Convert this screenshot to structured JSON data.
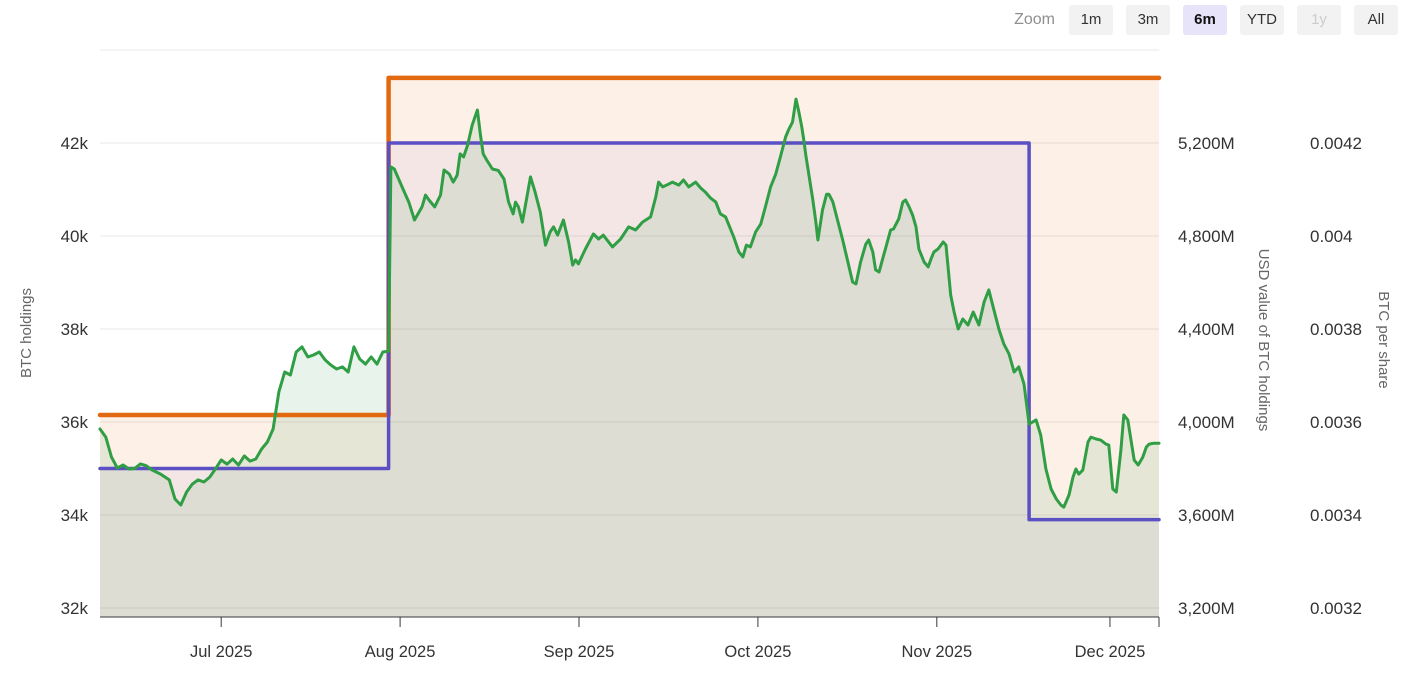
{
  "toolbar": {
    "zoom_label": "Zoom",
    "buttons": [
      {
        "label": "1m",
        "state": "normal"
      },
      {
        "label": "3m",
        "state": "normal"
      },
      {
        "label": "6m",
        "state": "active"
      },
      {
        "label": "YTD",
        "state": "normal"
      },
      {
        "label": "1y",
        "state": "disabled"
      },
      {
        "label": "All",
        "state": "normal"
      }
    ]
  },
  "colors": {
    "btc_holdings": "#E2690F",
    "usd_value": "#2F9E45",
    "btc_per_share": "#5B4FC4",
    "active_button_bg": "#E7E3F8",
    "button_bg": "#F2F2F2",
    "grid": "#E8E8E8",
    "axis_line": "#39383d",
    "axis_text": "#333333",
    "axis_title": "#666666",
    "background": "#FFFFFF"
  },
  "chart_data": {
    "type": "line",
    "title": "",
    "x_axis": {
      "start_date": "2025-06-10",
      "end_date": "2025-12-10",
      "range_days": [
        0,
        183.5
      ],
      "tick_days": [
        21,
        52,
        83,
        114,
        145,
        175
      ],
      "tick_labels": [
        "Jul 2025",
        "Aug 2025",
        "Sep 2025",
        "Oct 2025",
        "Nov 2025",
        "Dec 2025"
      ]
    },
    "axes": {
      "left": {
        "title": "BTC holdings",
        "tick_values": [
          44000,
          42000,
          40000,
          38000,
          36000,
          34000,
          32000
        ],
        "tick_labels": [
          "",
          "42k",
          "40k",
          "38k",
          "36k",
          "34k",
          "32k"
        ],
        "grid": true
      },
      "usd": {
        "title": "USD value of BTC holdings",
        "tick_values": [
          5200,
          4800,
          4400,
          4000,
          3600,
          3200
        ],
        "tick_labels": [
          "5,200M",
          "4,800M",
          "4,400M",
          "4,000M",
          "3,600M",
          "3,200M"
        ]
      },
      "share": {
        "title": "BTC per share",
        "tick_values": [
          0.0042,
          0.004,
          0.0038,
          0.0036,
          0.0034,
          0.0032
        ],
        "tick_labels": [
          "0.0042",
          "0.004",
          "0.0038",
          "0.0036",
          "0.0034",
          "0.0032"
        ]
      }
    },
    "series": [
      {
        "name": "BTC holdings",
        "slug": "btc-holdings",
        "axis": "left",
        "type": "step",
        "color": "#E2690F",
        "line_width": 4.5,
        "fill_opacity": 0.1,
        "points": [
          [
            0,
            36150
          ],
          [
            50,
            36150
          ],
          [
            50,
            43400
          ],
          [
            183.5,
            43400
          ]
        ]
      },
      {
        "name": "BTC per share",
        "slug": "btc-per-share",
        "axis": "share",
        "type": "step",
        "color": "#5B4FC4",
        "line_width": 3.5,
        "fill_opacity": 0.055,
        "points": [
          [
            0,
            0.0035
          ],
          [
            50,
            0.0035
          ],
          [
            50,
            0.0042
          ],
          [
            161,
            0.0042
          ],
          [
            161,
            0.00339
          ],
          [
            183.5,
            0.00339
          ]
        ]
      },
      {
        "name": "USD value of BTC holdings",
        "slug": "usd-value",
        "axis": "usd",
        "type": "line",
        "color": "#2F9E45",
        "line_width": 3,
        "fill_opacity": 0.11,
        "points": [
          [
            0,
            3970
          ],
          [
            1,
            3935
          ],
          [
            2,
            3849
          ],
          [
            3,
            3802
          ],
          [
            4,
            3815
          ],
          [
            5,
            3798
          ],
          [
            6,
            3800
          ],
          [
            7,
            3820
          ],
          [
            8,
            3812
          ],
          [
            9,
            3794
          ],
          [
            10.5,
            3776
          ],
          [
            12,
            3751
          ],
          [
            13,
            3669
          ],
          [
            14,
            3643
          ],
          [
            15,
            3699
          ],
          [
            16,
            3733
          ],
          [
            17,
            3751
          ],
          [
            18,
            3742
          ],
          [
            19,
            3763
          ],
          [
            20,
            3798
          ],
          [
            21,
            3837
          ],
          [
            22,
            3819
          ],
          [
            23,
            3841
          ],
          [
            24,
            3815
          ],
          [
            25,
            3854
          ],
          [
            26,
            3832
          ],
          [
            27,
            3841
          ],
          [
            28,
            3884
          ],
          [
            29,
            3914
          ],
          [
            30,
            3970
          ],
          [
            31,
            4130
          ],
          [
            32,
            4215
          ],
          [
            33,
            4202
          ],
          [
            34,
            4301
          ],
          [
            35,
            4323
          ],
          [
            36,
            4280
          ],
          [
            37,
            4288
          ],
          [
            38,
            4301
          ],
          [
            39,
            4267
          ],
          [
            40,
            4245
          ],
          [
            41,
            4228
          ],
          [
            42,
            4237
          ],
          [
            43,
            4215
          ],
          [
            44,
            4323
          ],
          [
            45,
            4271
          ],
          [
            46,
            4249
          ],
          [
            47,
            4280
          ],
          [
            48,
            4249
          ],
          [
            49,
            4301
          ],
          [
            50,
            4305
          ],
          [
            50.4,
            5097
          ],
          [
            51,
            5088
          ],
          [
            52.5,
            5002
          ],
          [
            53.5,
            4946
          ],
          [
            54.5,
            4869
          ],
          [
            55.8,
            4925
          ],
          [
            56.4,
            4976
          ],
          [
            57,
            4955
          ],
          [
            58,
            4925
          ],
          [
            59,
            4976
          ],
          [
            59.6,
            5084
          ],
          [
            60.5,
            5067
          ],
          [
            61.2,
            5032
          ],
          [
            61.9,
            5062
          ],
          [
            62.4,
            5153
          ],
          [
            63,
            5140
          ],
          [
            63.7,
            5191
          ],
          [
            64.5,
            5277
          ],
          [
            65.4,
            5342
          ],
          [
            65.9,
            5239
          ],
          [
            66.4,
            5153
          ],
          [
            67,
            5127
          ],
          [
            68,
            5088
          ],
          [
            69,
            5082
          ],
          [
            70,
            5045
          ],
          [
            70.8,
            4946
          ],
          [
            71.6,
            4895
          ],
          [
            72,
            4946
          ],
          [
            72.5,
            4925
          ],
          [
            73.2,
            4860
          ],
          [
            74.6,
            5054
          ],
          [
            75.4,
            4989
          ],
          [
            76.3,
            4903
          ],
          [
            77.2,
            4761
          ],
          [
            78,
            4817
          ],
          [
            78.6,
            4839
          ],
          [
            79.3,
            4804
          ],
          [
            80.3,
            4869
          ],
          [
            81.2,
            4774
          ],
          [
            81.9,
            4675
          ],
          [
            82.4,
            4697
          ],
          [
            82.9,
            4680
          ],
          [
            84.1,
            4744
          ],
          [
            85.5,
            4809
          ],
          [
            86.4,
            4787
          ],
          [
            87.2,
            4804
          ],
          [
            88.8,
            4753
          ],
          [
            90.2,
            4787
          ],
          [
            91.6,
            4839
          ],
          [
            92.8,
            4826
          ],
          [
            94,
            4860
          ],
          [
            95.4,
            4882
          ],
          [
            96.3,
            4968
          ],
          [
            96.8,
            5032
          ],
          [
            97.5,
            5011
          ],
          [
            98.5,
            5023
          ],
          [
            99.2,
            5032
          ],
          [
            100.3,
            5019
          ],
          [
            101.1,
            5041
          ],
          [
            102,
            5011
          ],
          [
            103.2,
            5032
          ],
          [
            104.1,
            5006
          ],
          [
            104.9,
            4989
          ],
          [
            105.8,
            4963
          ],
          [
            106.7,
            4946
          ],
          [
            107.5,
            4895
          ],
          [
            108.4,
            4882
          ],
          [
            109.8,
            4796
          ],
          [
            110.7,
            4731
          ],
          [
            111.4,
            4710
          ],
          [
            112,
            4761
          ],
          [
            112.7,
            4753
          ],
          [
            113.6,
            4817
          ],
          [
            114.5,
            4852
          ],
          [
            115.3,
            4925
          ],
          [
            116.2,
            5011
          ],
          [
            117.1,
            5067
          ],
          [
            117.9,
            5140
          ],
          [
            118.8,
            5226
          ],
          [
            119.3,
            5256
          ],
          [
            120,
            5290
          ],
          [
            120.6,
            5389
          ],
          [
            121.1,
            5333
          ],
          [
            121.6,
            5269
          ],
          [
            122,
            5204
          ],
          [
            122.3,
            5148
          ],
          [
            123.5,
            4959
          ],
          [
            124,
            4869
          ],
          [
            124.4,
            4783
          ],
          [
            125.2,
            4912
          ],
          [
            125.9,
            4980
          ],
          [
            126.3,
            4980
          ],
          [
            127,
            4946
          ],
          [
            127.8,
            4869
          ],
          [
            128.7,
            4783
          ],
          [
            129.6,
            4688
          ],
          [
            130.4,
            4602
          ],
          [
            131,
            4594
          ],
          [
            131.8,
            4688
          ],
          [
            132.7,
            4765
          ],
          [
            133.2,
            4783
          ],
          [
            133.9,
            4731
          ],
          [
            134.4,
            4654
          ],
          [
            135,
            4645
          ],
          [
            135.6,
            4701
          ],
          [
            136.2,
            4753
          ],
          [
            137,
            4826
          ],
          [
            137.5,
            4830
          ],
          [
            138.4,
            4873
          ],
          [
            139.1,
            4946
          ],
          [
            139.6,
            4955
          ],
          [
            140.2,
            4925
          ],
          [
            140.8,
            4890
          ],
          [
            141.4,
            4839
          ],
          [
            141.9,
            4744
          ],
          [
            142.8,
            4688
          ],
          [
            143.5,
            4667
          ],
          [
            144,
            4701
          ],
          [
            144.5,
            4731
          ],
          [
            145.2,
            4744
          ],
          [
            146.1,
            4774
          ],
          [
            146.6,
            4761
          ],
          [
            147.4,
            4546
          ],
          [
            148,
            4473
          ],
          [
            148.7,
            4400
          ],
          [
            149.5,
            4443
          ],
          [
            150.4,
            4417
          ],
          [
            151.3,
            4473
          ],
          [
            152.3,
            4417
          ],
          [
            153.2,
            4516
          ],
          [
            154,
            4568
          ],
          [
            154.9,
            4482
          ],
          [
            155.8,
            4396
          ],
          [
            156.6,
            4336
          ],
          [
            157.5,
            4293
          ],
          [
            158.4,
            4215
          ],
          [
            159.2,
            4237
          ],
          [
            160.1,
            4163
          ],
          [
            161,
            3991
          ],
          [
            162.2,
            4009
          ],
          [
            163,
            3944
          ],
          [
            163.9,
            3798
          ],
          [
            164.8,
            3712
          ],
          [
            165.7,
            3669
          ],
          [
            166.5,
            3643
          ],
          [
            167,
            3634
          ],
          [
            167.9,
            3686
          ],
          [
            168.6,
            3763
          ],
          [
            169.1,
            3798
          ],
          [
            169.6,
            3776
          ],
          [
            170.3,
            3793
          ],
          [
            171.2,
            3914
          ],
          [
            171.7,
            3935
          ],
          [
            172.6,
            3927
          ],
          [
            173.4,
            3922
          ],
          [
            174.3,
            3905
          ],
          [
            174.8,
            3901
          ],
          [
            175.5,
            3712
          ],
          [
            176.1,
            3699
          ],
          [
            176.9,
            3879
          ],
          [
            177.4,
            4030
          ],
          [
            178.1,
            4009
          ],
          [
            178.7,
            3914
          ],
          [
            179.2,
            3836
          ],
          [
            179.9,
            3815
          ],
          [
            180.7,
            3849
          ],
          [
            181.3,
            3892
          ],
          [
            181.8,
            3905
          ],
          [
            182.6,
            3909
          ],
          [
            183.5,
            3909
          ]
        ]
      }
    ],
    "layout": {
      "legend": false,
      "grid": true
    }
  }
}
